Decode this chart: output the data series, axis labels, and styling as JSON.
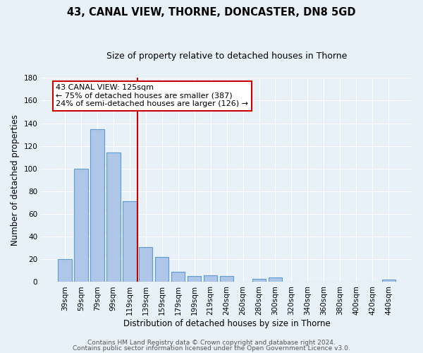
{
  "title": "43, CANAL VIEW, THORNE, DONCASTER, DN8 5GD",
  "subtitle": "Size of property relative to detached houses in Thorne",
  "xlabel": "Distribution of detached houses by size in Thorne",
  "ylabel": "Number of detached properties",
  "bar_labels": [
    "39sqm",
    "59sqm",
    "79sqm",
    "99sqm",
    "119sqm",
    "139sqm",
    "159sqm",
    "179sqm",
    "199sqm",
    "219sqm",
    "240sqm",
    "260sqm",
    "280sqm",
    "300sqm",
    "320sqm",
    "340sqm",
    "360sqm",
    "380sqm",
    "400sqm",
    "420sqm",
    "440sqm"
  ],
  "bar_heights": [
    20,
    100,
    135,
    114,
    71,
    31,
    22,
    9,
    5,
    6,
    5,
    0,
    3,
    4,
    0,
    0,
    0,
    0,
    0,
    0,
    2
  ],
  "bar_color": "#aec6e8",
  "bar_edge_color": "#5b9bd5",
  "ylim": [
    0,
    180
  ],
  "yticks": [
    0,
    20,
    40,
    60,
    80,
    100,
    120,
    140,
    160,
    180
  ],
  "vline_color": "#cc0000",
  "annotation_text": "43 CANAL VIEW: 125sqm\n← 75% of detached houses are smaller (387)\n24% of semi-detached houses are larger (126) →",
  "annotation_box_color": "#ffffff",
  "annotation_box_edge": "#cc0000",
  "footer1": "Contains HM Land Registry data © Crown copyright and database right 2024.",
  "footer2": "Contains public sector information licensed under the Open Government Licence v3.0.",
  "bg_color": "#e8f0f8",
  "plot_bg_color": "#e8f0f8",
  "grid_color": "#ffffff",
  "title_fontsize": 10.5,
  "subtitle_fontsize": 9,
  "axis_label_fontsize": 8.5,
  "tick_fontsize": 7.5,
  "annotation_fontsize": 8,
  "footer_fontsize": 6.5
}
